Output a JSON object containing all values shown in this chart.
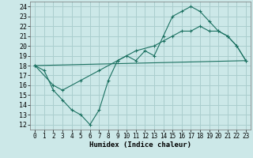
{
  "xlabel": "Humidex (Indice chaleur)",
  "bg_color": "#cce8e8",
  "grid_color": "#aacece",
  "line_color": "#1a7060",
  "xlim": [
    -0.5,
    23.5
  ],
  "ylim": [
    11.5,
    24.5
  ],
  "xticks": [
    0,
    1,
    2,
    3,
    4,
    5,
    6,
    7,
    8,
    9,
    10,
    11,
    12,
    13,
    14,
    15,
    16,
    17,
    18,
    19,
    20,
    21,
    22,
    23
  ],
  "yticks": [
    12,
    13,
    14,
    15,
    16,
    17,
    18,
    19,
    20,
    21,
    22,
    23,
    24
  ],
  "line1_x": [
    0,
    1,
    2,
    3,
    4,
    5,
    6,
    7,
    8,
    9,
    10,
    11,
    12,
    13,
    14,
    15,
    16,
    17,
    18,
    19,
    20,
    21,
    22,
    23
  ],
  "line1_y": [
    18,
    17.5,
    15.5,
    14.5,
    13.5,
    13,
    12,
    13.5,
    16.5,
    18.5,
    19,
    18.5,
    19.5,
    19,
    21,
    23,
    23.5,
    24,
    23.5,
    22.5,
    21.5,
    21,
    20,
    18.5
  ],
  "line2_x": [
    0,
    2,
    3,
    5,
    7,
    9,
    11,
    13,
    14,
    15,
    16,
    17,
    18,
    19,
    20,
    21,
    22,
    23
  ],
  "line2_y": [
    18,
    16,
    15.5,
    16.5,
    17.5,
    18.5,
    19.5,
    20,
    20.5,
    21,
    21.5,
    21.5,
    22,
    21.5,
    21.5,
    21,
    20,
    18.5
  ],
  "line3_x": [
    0,
    23
  ],
  "line3_y": [
    18,
    18.5
  ]
}
